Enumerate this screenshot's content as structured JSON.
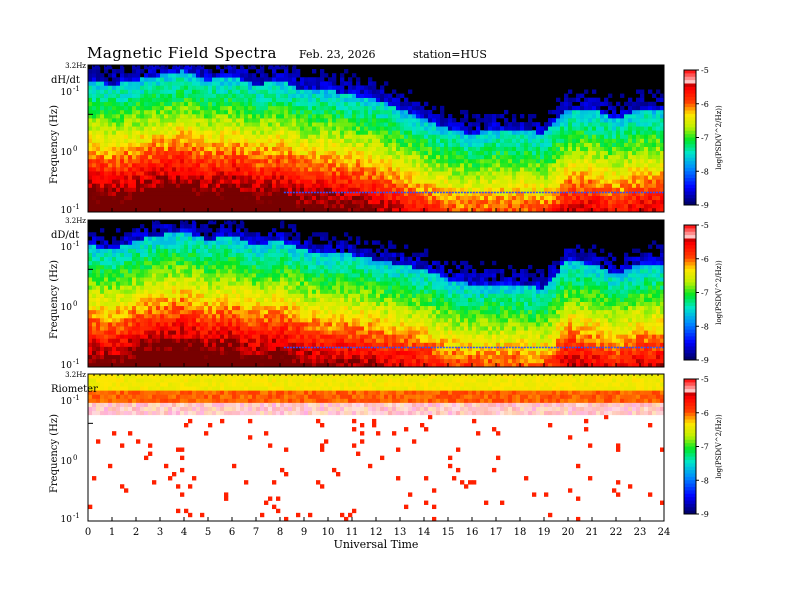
{
  "header": {
    "title": "Magnetic  Field  Spectra",
    "date": "Feb. 23, 2026",
    "station": "station=HUS"
  },
  "colors": {
    "spectra_background": "#000000",
    "accent_red": "#ff2000",
    "accent_yellow": "#ffe000"
  },
  "chart_data": [
    {
      "type": "heatmap",
      "panel_label": "dH/dt",
      "ylabel": "Frequency  (Hz)",
      "y_scale": "log",
      "ylim": [
        0.1,
        3.2
      ],
      "y_top_label": "3.2Hz",
      "y_ticks": [
        "10-1",
        "100",
        "10-1"
      ],
      "xlim": [
        0,
        24
      ],
      "colorbar": {
        "label": "log(PSD(V^2/Hz))",
        "range": [
          -9,
          -5
        ],
        "ticks": [
          "-5",
          "-6",
          "-7",
          "-8",
          "-9"
        ]
      },
      "z_floor_profile": {
        "hours": [
          0,
          1,
          2,
          3,
          4,
          5,
          6,
          7,
          8,
          9,
          10,
          11,
          12,
          13,
          14,
          15,
          16,
          17,
          18,
          19,
          20,
          21,
          22,
          23,
          24
        ],
        "log10_freq_of_noise_floor": [
          0.2,
          0.15,
          0.2,
          0.25,
          0.3,
          0.2,
          0.25,
          0.15,
          0.2,
          0.1,
          0.1,
          0.05,
          0.0,
          -0.1,
          -0.2,
          -0.3,
          -0.35,
          -0.3,
          -0.3,
          -0.35,
          -0.1,
          -0.1,
          -0.2,
          -0.1,
          -0.1
        ]
      },
      "narrowband_line_log10_freq": -0.8
    },
    {
      "type": "heatmap",
      "panel_label": "dD/dt",
      "ylabel": "Frequency  (Hz)",
      "y_scale": "log",
      "ylim": [
        0.1,
        3.2
      ],
      "y_top_label": "3.2Hz",
      "y_ticks": [
        "10-1",
        "100",
        "10-1"
      ],
      "xlim": [
        0,
        24
      ],
      "colorbar": {
        "label": "log(PSD(V^2/Hz))",
        "range": [
          -9,
          -5
        ],
        "ticks": [
          "-5",
          "-6",
          "-7",
          "-8",
          "-9"
        ]
      },
      "z_floor_profile": {
        "hours": [
          0,
          1,
          2,
          3,
          4,
          5,
          6,
          7,
          8,
          9,
          10,
          11,
          12,
          13,
          14,
          15,
          16,
          17,
          18,
          19,
          20,
          21,
          22,
          23,
          24
        ],
        "log10_freq_of_noise_floor": [
          0.1,
          0.05,
          0.15,
          0.2,
          0.25,
          0.15,
          0.2,
          0.1,
          0.15,
          0.05,
          0.0,
          0.0,
          -0.05,
          -0.1,
          -0.15,
          -0.25,
          -0.3,
          -0.3,
          -0.3,
          -0.35,
          -0.05,
          -0.1,
          -0.2,
          -0.1,
          -0.1
        ]
      },
      "narrowband_line_log10_freq": -0.8
    },
    {
      "type": "heatmap",
      "panel_label": "Riometer",
      "ylabel": "Frequency  (Hz)",
      "y_scale": "log",
      "ylim": [
        0.1,
        3.2
      ],
      "y_top_label": "3.2Hz",
      "y_ticks": [
        "10-1",
        "100",
        "10-1"
      ],
      "xlim": [
        0,
        24
      ],
      "colorbar": {
        "label": "log(PSD(V^2/Hz))",
        "range": [
          -9,
          -5
        ],
        "ticks": [
          "-5",
          "-6",
          "-7",
          "-8",
          "-9"
        ]
      }
    }
  ],
  "xaxis": {
    "label": "Universal Time",
    "ticks": [
      "0",
      "1",
      "2",
      "3",
      "4",
      "5",
      "6",
      "7",
      "8",
      "9",
      "10",
      "11",
      "12",
      "13",
      "14",
      "15",
      "16",
      "17",
      "18",
      "19",
      "20",
      "21",
      "22",
      "23",
      "24"
    ]
  }
}
